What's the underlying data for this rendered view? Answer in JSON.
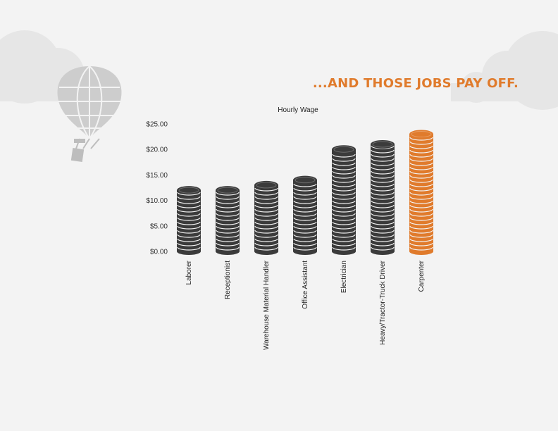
{
  "headline": "...AND THOSE JOBS PAY OFF.",
  "colors": {
    "background": "#f3f3f3",
    "cloud": "#e6e6e6",
    "coin_dark": "#3b3b3b",
    "coin_highlight": "#e07b2c",
    "balloon": "#cdcdcd",
    "headline": "#e07b2c"
  },
  "icons": [
    "cloud-icon",
    "hot-air-balloon-icon"
  ],
  "chart_data": {
    "type": "bar",
    "style": "stacked coin pictograph",
    "title": "Hourly Wage",
    "xlabel": "",
    "ylabel": "",
    "ylim": [
      0,
      25
    ],
    "yticks": [
      "$0.00",
      "$5.00",
      "$10.00",
      "$15.00",
      "$20.00",
      "$25.00"
    ],
    "categories": [
      "Laborer",
      "Receptionist",
      "Warehouse Material Handler",
      "Office Assistant",
      "Electrician",
      "Heavy/Tractor-Truck Driver",
      "Carpenter"
    ],
    "values": [
      12,
      12,
      13,
      14,
      20,
      21,
      23
    ],
    "highlighted_category": "Carpenter",
    "grid": false,
    "legend": "none"
  }
}
